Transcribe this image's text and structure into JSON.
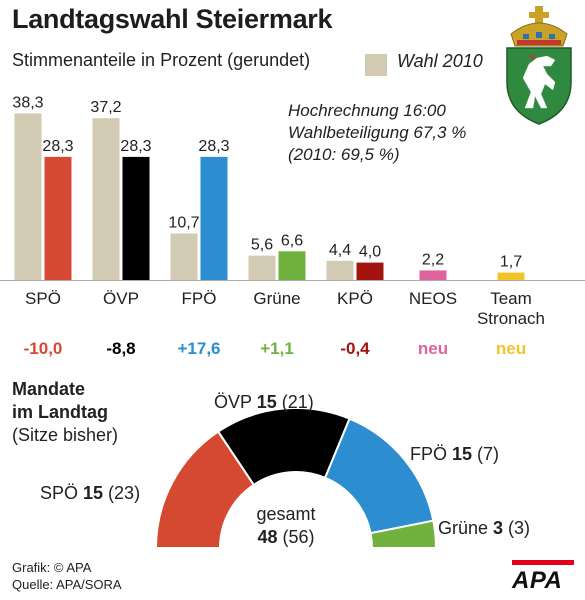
{
  "title": "Landtagswahl Steiermark",
  "subtitle": "Stimmenanteile in Prozent (gerundet)",
  "legend": {
    "label": "Wahl 2010",
    "color": "#d3cab4"
  },
  "info": [
    "Hochrechnung 16:00",
    "Wahlbeteiligung 67,3 %",
    "(2010: 69,5 %)"
  ],
  "coat_of_arms_icon": "steiermark-coat-of-arms-icon",
  "chart_data": {
    "type": "bar",
    "title": "Landtagswahl Steiermark",
    "subtitle": "Stimmenanteile in Prozent (gerundet)",
    "ylim": [
      0,
      40
    ],
    "grid": false,
    "legend_position": "top-right",
    "categories": [
      "SPÖ",
      "ÖVP",
      "FPÖ",
      "Grüne",
      "KPÖ",
      "NEOS",
      "Team Stronach"
    ],
    "category_lines": [
      [
        "SPÖ"
      ],
      [
        "ÖVP"
      ],
      [
        "FPÖ"
      ],
      [
        "Grüne"
      ],
      [
        "KPÖ"
      ],
      [
        "NEOS"
      ],
      [
        "Team",
        "Stronach"
      ]
    ],
    "series": [
      {
        "name": "Wahl 2010",
        "color": "#d3cab4",
        "values": [
          38.3,
          37.2,
          10.7,
          5.6,
          4.4,
          null,
          null
        ],
        "labels": [
          "38,3",
          "37,2",
          "10,7",
          "5,6",
          "4,4",
          "",
          ""
        ]
      },
      {
        "colors": [
          "#d54932",
          "#000000",
          "#2c8ed0",
          "#71b23f",
          "#a31310",
          "#e0629d",
          "#f2c427"
        ],
        "values": [
          28.3,
          28.3,
          28.3,
          6.6,
          4.0,
          2.2,
          1.7
        ],
        "labels": [
          "28,3",
          "28,3",
          "28,3",
          "6,6",
          "4,0",
          "2,2",
          "1,7"
        ]
      }
    ],
    "changes": [
      "-10,0",
      "-8,8",
      "+17,6",
      "+1,1",
      "-0,4",
      "neu",
      "neu"
    ],
    "change_colors": [
      "#d54932",
      "#000000",
      "#2c8ed0",
      "#71b23f",
      "#a31310",
      "#e0629d",
      "#f2c427"
    ]
  },
  "mandate": {
    "title_lines": [
      "Mandate",
      "im Landtag"
    ],
    "subtitle": "(Sitze bisher)",
    "total_label": "gesamt",
    "total": 48,
    "total_prev": "(56)",
    "parties": [
      {
        "name": "SPÖ",
        "seats": 15,
        "prev": "(23)",
        "color": "#d54932"
      },
      {
        "name": "ÖVP",
        "seats": 15,
        "prev": "(21)",
        "color": "#000000"
      },
      {
        "name": "FPÖ",
        "seats": 15,
        "prev": "(7)",
        "color": "#2c8ed0"
      },
      {
        "name": "Grüne",
        "seats": 3,
        "prev": "(3)",
        "color": "#71b23f"
      }
    ]
  },
  "credit": [
    "Grafik: © APA",
    "Quelle: APA/SORA"
  ],
  "logo": "APA"
}
